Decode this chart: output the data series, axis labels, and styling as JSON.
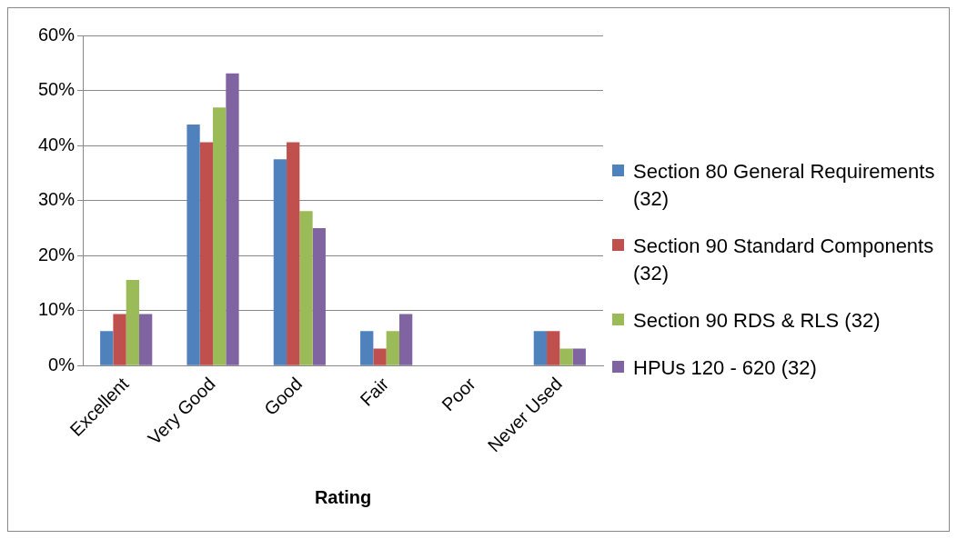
{
  "chart_data": {
    "type": "bar",
    "xlabel": "Rating",
    "categories": [
      "Excellent",
      "Very Good",
      "Good",
      "Fair",
      "Poor",
      "Never Used"
    ],
    "series": [
      {
        "name": "Section 80 General Requirements (32)",
        "color": "#4f81bd",
        "values": [
          6.3,
          43.8,
          37.5,
          6.3,
          0,
          6.3
        ]
      },
      {
        "name": "Section 90 Standard Components (32)",
        "color": "#c0504d",
        "values": [
          9.4,
          40.6,
          40.6,
          3.1,
          0,
          6.3
        ]
      },
      {
        "name": "Section 90 RDS & RLS (32)",
        "color": "#9bbb59",
        "values": [
          15.6,
          46.9,
          28.1,
          6.3,
          0,
          3.1
        ]
      },
      {
        "name": "HPUs 120 - 620 (32)",
        "color": "#8064a2",
        "values": [
          9.4,
          53.1,
          25,
          9.4,
          0,
          3.1
        ]
      }
    ],
    "ylim": [
      0,
      60
    ],
    "yticks": [
      {
        "value": 0,
        "label": "0%"
      },
      {
        "value": 10,
        "label": "10%"
      },
      {
        "value": 20,
        "label": "20%"
      },
      {
        "value": 30,
        "label": "30%"
      },
      {
        "value": 40,
        "label": "40%"
      },
      {
        "value": 50,
        "label": "50%"
      },
      {
        "value": 60,
        "label": "60%"
      }
    ],
    "grid": "y",
    "legend": "right"
  }
}
